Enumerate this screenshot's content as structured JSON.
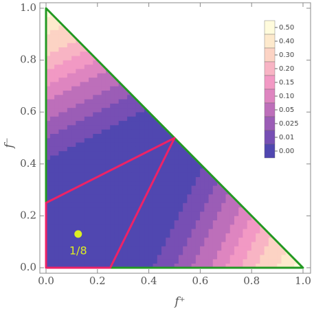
{
  "chart_data": {
    "type": "contour",
    "xlabel": "f⁺",
    "ylabel": "f⁻",
    "xlim": [
      0,
      1
    ],
    "ylim": [
      0,
      1
    ],
    "xticks": [
      {
        "value": 0,
        "label": "0.0"
      },
      0.2,
      0.4,
      0.6,
      0.8,
      {
        "value": 1,
        "label": "1.0"
      }
    ],
    "yticks": [
      {
        "value": 0,
        "label": "0.0"
      },
      0.2,
      0.4,
      0.6,
      0.8,
      {
        "value": 1,
        "label": "1.0"
      }
    ],
    "legend_levels": [
      {
        "value": 0.5,
        "label": "0.50"
      },
      {
        "value": 0.4,
        "label": "0.40"
      },
      {
        "value": 0.3,
        "label": "0.30"
      },
      {
        "value": 0.2,
        "label": "0.20"
      },
      0.15,
      {
        "value": 0.1,
        "label": "0.10"
      },
      0.05,
      0.025,
      0.01,
      {
        "value": 0,
        "label": "0.00"
      }
    ],
    "legend_colors": [
      "#fffbdc",
      "#fde9cc",
      "#fcd3c4",
      "#f8b4c4",
      "#f299c4",
      "#de85c0",
      "#bd6fba",
      "#9b5db6",
      "#774fb4",
      "#5047b0"
    ],
    "regions": [
      {
        "color": "#229922",
        "x": [
          0,
          1,
          0
        ],
        "y": [
          0,
          0,
          1
        ]
      },
      {
        "color": "#ee2266",
        "x": [
          0,
          0.25,
          0.5,
          0
        ],
        "y": [
          0,
          0,
          0.5,
          0.25
        ]
      }
    ],
    "points": [
      {
        "x": 0.125,
        "y": 0.13,
        "label": "1/8",
        "color": "#ddee22"
      }
    ]
  }
}
